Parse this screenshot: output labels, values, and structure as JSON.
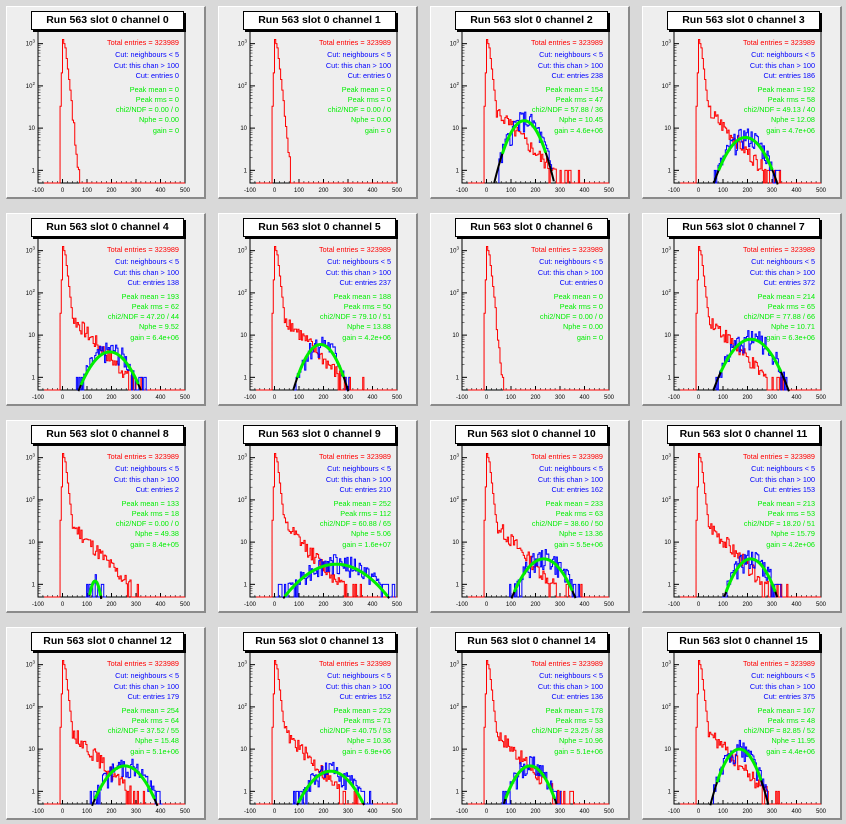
{
  "chart_data": [
    {
      "type": "line",
      "title": "Run 563 slot 0 channel 0",
      "total_entries": "Total entries = 323989",
      "cut_neighbours": "Cut: neighbours < 5",
      "cut_chan": "Cut: this chan > 100",
      "cut_entries": "Cut: entries 0",
      "peak_mean": "Peak mean = 0",
      "peak_rms": "Peak rms = 0",
      "chi2ndf": "chi2/NDF = 0.00 / 0",
      "nphe": "Nphe = 0.00",
      "gain": "gain = 0",
      "xticks": [
        "-100",
        "0",
        "100",
        "200",
        "300",
        "400",
        "500"
      ],
      "yticks": [
        "10^3",
        "10^2",
        "10",
        "1"
      ],
      "xlim": [
        -100,
        500
      ],
      "fit": null
    },
    {
      "type": "line",
      "title": "Run 563 slot 0 channel 1",
      "total_entries": "Total entries = 323989",
      "cut_neighbours": "Cut: neighbours < 5",
      "cut_chan": "Cut: this chan > 100",
      "cut_entries": "Cut: entries 0",
      "peak_mean": "Peak mean = 0",
      "peak_rms": "Peak rms = 0",
      "chi2ndf": "chi2/NDF = 0.00 / 0",
      "nphe": "Nphe = 0.00",
      "gain": "gain = 0",
      "xticks": [
        "-100",
        "0",
        "100",
        "200",
        "300",
        "400",
        "500"
      ],
      "yticks": [
        "10^3",
        "10^2",
        "10",
        "1"
      ],
      "xlim": [
        -100,
        500
      ],
      "fit": null
    },
    {
      "type": "line",
      "title": "Run 563 slot 0 channel 2",
      "total_entries": "Total entries = 323989",
      "cut_neighbours": "Cut: neighbours < 5",
      "cut_chan": "Cut: this chan > 100",
      "cut_entries": "Cut: entries 238",
      "peak_mean": "Peak mean = 154",
      "peak_rms": "Peak rms = 47",
      "chi2ndf": "chi2/NDF = 57.88 / 36",
      "nphe": "Nphe = 10.45",
      "gain": "gain = 4.6e+06",
      "xticks": [
        "-100",
        "0",
        "100",
        "200",
        "300",
        "400",
        "500"
      ],
      "yticks": [
        "10^3",
        "10^2",
        "10",
        "1"
      ],
      "xlim": [
        -100,
        500
      ],
      "fit": {
        "mean": 154,
        "rms": 47,
        "peak": 15
      }
    },
    {
      "type": "line",
      "title": "Run 563 slot 0 channel 3",
      "total_entries": "Total entries = 323989",
      "cut_neighbours": "Cut: neighbours < 5",
      "cut_chan": "Cut: this chan > 100",
      "cut_entries": "Cut: entries 186",
      "peak_mean": "Peak mean = 192",
      "peak_rms": "Peak rms = 58",
      "chi2ndf": "chi2/NDF = 49.13 / 40",
      "nphe": "Nphe = 12.08",
      "gain": "gain = 4.7e+06",
      "xticks": [
        "-100",
        "0",
        "100",
        "200",
        "300",
        "400",
        "500"
      ],
      "yticks": [
        "10^3",
        "10^2",
        "10",
        "1"
      ],
      "xlim": [
        -100,
        500
      ],
      "fit": {
        "mean": 192,
        "rms": 58,
        "peak": 6
      }
    },
    {
      "type": "line",
      "title": "Run 563 slot 0 channel 4",
      "total_entries": "Total entries = 323989",
      "cut_neighbours": "Cut: neighbours < 5",
      "cut_chan": "Cut: this chan > 100",
      "cut_entries": "Cut: entries 138",
      "peak_mean": "Peak mean = 193",
      "peak_rms": "Peak rms = 62",
      "chi2ndf": "chi2/NDF = 47.20 / 44",
      "nphe": "Nphe = 9.52",
      "gain": "gain = 6.4e+06",
      "xticks": [
        "-100",
        "0",
        "100",
        "200",
        "300",
        "400",
        "500"
      ],
      "yticks": [
        "10^3",
        "10^2",
        "10",
        "1"
      ],
      "xlim": [
        -100,
        500
      ],
      "fit": {
        "mean": 193,
        "rms": 62,
        "peak": 4
      }
    },
    {
      "type": "line",
      "title": "Run 563 slot 0 channel 5",
      "total_entries": "Total entries = 323989",
      "cut_neighbours": "Cut: neighbours < 5",
      "cut_chan": "Cut: this chan > 100",
      "cut_entries": "Cut: entries 237",
      "peak_mean": "Peak mean = 188",
      "peak_rms": "Peak rms = 50",
      "chi2ndf": "chi2/NDF = 79.10 / 51",
      "nphe": "Nphe = 13.88",
      "gain": "gain = 4.2e+06",
      "xticks": [
        "-100",
        "0",
        "100",
        "200",
        "300",
        "400",
        "500"
      ],
      "yticks": [
        "10^3",
        "10^2",
        "10",
        "1"
      ],
      "xlim": [
        -100,
        500
      ],
      "fit": {
        "mean": 188,
        "rms": 50,
        "peak": 6
      }
    },
    {
      "type": "line",
      "title": "Run 563 slot 0 channel 6",
      "total_entries": "Total entries = 323989",
      "cut_neighbours": "Cut: neighbours < 5",
      "cut_chan": "Cut: this chan > 100",
      "cut_entries": "Cut: entries 0",
      "peak_mean": "Peak mean = 0",
      "peak_rms": "Peak rms = 0",
      "chi2ndf": "chi2/NDF = 0.00 / 0",
      "nphe": "Nphe = 0.00",
      "gain": "gain = 0",
      "xticks": [
        "-100",
        "0",
        "100",
        "200",
        "300",
        "400",
        "500"
      ],
      "yticks": [
        "10^3",
        "10^2",
        "10",
        "1"
      ],
      "xlim": [
        -100,
        500
      ],
      "fit": null
    },
    {
      "type": "line",
      "title": "Run 563 slot 0 channel 7",
      "total_entries": "Total entries = 323989",
      "cut_neighbours": "Cut: neighbours < 5",
      "cut_chan": "Cut: this chan > 100",
      "cut_entries": "Cut: entries 372",
      "peak_mean": "Peak mean = 214",
      "peak_rms": "Peak rms = 65",
      "chi2ndf": "chi2/NDF = 77.88 / 66",
      "nphe": "Nphe = 10.71",
      "gain": "gain = 6.3e+06",
      "xticks": [
        "-100",
        "0",
        "100",
        "200",
        "300",
        "400",
        "500"
      ],
      "yticks": [
        "10^3",
        "10^2",
        "10",
        "1"
      ],
      "xlim": [
        -100,
        500
      ],
      "fit": {
        "mean": 214,
        "rms": 65,
        "peak": 8
      }
    },
    {
      "type": "line",
      "title": "Run 563 slot 0 channel 8",
      "total_entries": "Total entries = 323989",
      "cut_neighbours": "Cut: neighbours < 5",
      "cut_chan": "Cut: this chan > 100",
      "cut_entries": "Cut: entries 2",
      "peak_mean": "Peak mean = 133",
      "peak_rms": "Peak rms = 18",
      "chi2ndf": "chi2/NDF = 0.00 / 0",
      "nphe": "Nphe = 49.38",
      "gain": "gain = 8.4e+05",
      "xticks": [
        "-100",
        "0",
        "100",
        "200",
        "300",
        "400",
        "500"
      ],
      "yticks": [
        "10^3",
        "10^2",
        "10",
        "1"
      ],
      "xlim": [
        -100,
        500
      ],
      "fit": {
        "mean": 133,
        "rms": 18,
        "peak": 1.2
      }
    },
    {
      "type": "line",
      "title": "Run 563 slot 0 channel 9",
      "total_entries": "Total entries = 323989",
      "cut_neighbours": "Cut: neighbours < 5",
      "cut_chan": "Cut: this chan > 100",
      "cut_entries": "Cut: entries 210",
      "peak_mean": "Peak mean = 252",
      "peak_rms": "Peak rms = 112",
      "chi2ndf": "chi2/NDF = 60.88 / 65",
      "nphe": "Nphe = 5.06",
      "gain": "gain = 1.6e+07",
      "xticks": [
        "-100",
        "0",
        "100",
        "200",
        "300",
        "400",
        "500"
      ],
      "yticks": [
        "10^3",
        "10^2",
        "10",
        "1"
      ],
      "xlim": [
        -100,
        500
      ],
      "fit": {
        "mean": 252,
        "rms": 112,
        "peak": 3
      }
    },
    {
      "type": "line",
      "title": "Run 563 slot 0 channel 10",
      "total_entries": "Total entries = 323989",
      "cut_neighbours": "Cut: neighbours < 5",
      "cut_chan": "Cut: this chan > 100",
      "cut_entries": "Cut: entries 162",
      "peak_mean": "Peak mean = 233",
      "peak_rms": "Peak rms = 63",
      "chi2ndf": "chi2/NDF = 38.60 / 50",
      "nphe": "Nphe = 13.36",
      "gain": "gain = 5.5e+06",
      "xticks": [
        "-100",
        "0",
        "100",
        "200",
        "300",
        "400",
        "500"
      ],
      "yticks": [
        "10^3",
        "10^2",
        "10",
        "1"
      ],
      "xlim": [
        -100,
        500
      ],
      "fit": {
        "mean": 233,
        "rms": 63,
        "peak": 4
      }
    },
    {
      "type": "line",
      "title": "Run 563 slot 0 channel 11",
      "total_entries": "Total entries = 323989",
      "cut_neighbours": "Cut: neighbours < 5",
      "cut_chan": "Cut: this chan > 100",
      "cut_entries": "Cut: entries 153",
      "peak_mean": "Peak mean = 213",
      "peak_rms": "Peak rms = 53",
      "chi2ndf": "chi2/NDF = 18.20 / 51",
      "nphe": "Nphe = 15.79",
      "gain": "gain = 4.2e+06",
      "xticks": [
        "-100",
        "0",
        "100",
        "200",
        "300",
        "400",
        "500"
      ],
      "yticks": [
        "10^3",
        "10^2",
        "10",
        "1"
      ],
      "xlim": [
        -100,
        500
      ],
      "fit": {
        "mean": 213,
        "rms": 53,
        "peak": 4
      }
    },
    {
      "type": "line",
      "title": "Run 563 slot 0 channel 12",
      "total_entries": "Total entries = 323989",
      "cut_neighbours": "Cut: neighbours < 5",
      "cut_chan": "Cut: this chan > 100",
      "cut_entries": "Cut: entries 179",
      "peak_mean": "Peak mean = 254",
      "peak_rms": "Peak rms = 64",
      "chi2ndf": "chi2/NDF = 37.52 / 55",
      "nphe": "Nphe = 15.48",
      "gain": "gain = 5.1e+06",
      "xticks": [
        "-100",
        "0",
        "100",
        "200",
        "300",
        "400",
        "500"
      ],
      "yticks": [
        "10^3",
        "10^2",
        "10",
        "1"
      ],
      "xlim": [
        -100,
        500
      ],
      "fit": {
        "mean": 254,
        "rms": 64,
        "peak": 4
      }
    },
    {
      "type": "line",
      "title": "Run 563 slot 0 channel 13",
      "total_entries": "Total entries = 323989",
      "cut_neighbours": "Cut: neighbours < 5",
      "cut_chan": "Cut: this chan > 100",
      "cut_entries": "Cut: entries 152",
      "peak_mean": "Peak mean = 229",
      "peak_rms": "Peak rms = 71",
      "chi2ndf": "chi2/NDF = 40.75 / 53",
      "nphe": "Nphe = 10.36",
      "gain": "gain = 6.9e+06",
      "xticks": [
        "-100",
        "0",
        "100",
        "200",
        "300",
        "400",
        "500"
      ],
      "yticks": [
        "10^3",
        "10^2",
        "10",
        "1"
      ],
      "xlim": [
        -100,
        500
      ],
      "fit": {
        "mean": 229,
        "rms": 71,
        "peak": 3
      }
    },
    {
      "type": "line",
      "title": "Run 563 slot 0 channel 14",
      "total_entries": "Total entries = 323989",
      "cut_neighbours": "Cut: neighbours < 5",
      "cut_chan": "Cut: this chan > 100",
      "cut_entries": "Cut: entries 136",
      "peak_mean": "Peak mean = 178",
      "peak_rms": "Peak rms = 53",
      "chi2ndf": "chi2/NDF = 23.25 / 38",
      "nphe": "Nphe = 10.96",
      "gain": "gain = 5.1e+06",
      "xticks": [
        "-100",
        "0",
        "100",
        "200",
        "300",
        "400",
        "500"
      ],
      "yticks": [
        "10^3",
        "10^2",
        "10",
        "1"
      ],
      "xlim": [
        -100,
        500
      ],
      "fit": {
        "mean": 178,
        "rms": 53,
        "peak": 4
      }
    },
    {
      "type": "line",
      "title": "Run 563 slot 0 channel 15",
      "total_entries": "Total entries = 323989",
      "cut_neighbours": "Cut: neighbours < 5",
      "cut_chan": "Cut: this chan > 100",
      "cut_entries": "Cut: entries 375",
      "peak_mean": "Peak mean = 167",
      "peak_rms": "Peak rms = 48",
      "chi2ndf": "chi2/NDF = 82.85 / 52",
      "nphe": "Nphe = 11.95",
      "gain": "gain = 4.4e+06",
      "xticks": [
        "-100",
        "0",
        "100",
        "200",
        "300",
        "400",
        "500"
      ],
      "yticks": [
        "10^3",
        "10^2",
        "10",
        "1"
      ],
      "xlim": [
        -100,
        500
      ],
      "fit": {
        "mean": 167,
        "rms": 48,
        "peak": 10
      }
    }
  ],
  "colors": {
    "total": "#ff0000",
    "cut": "#0000ff",
    "fit": "#00ee00",
    "fitline": "#000000",
    "axis": "#000000"
  }
}
